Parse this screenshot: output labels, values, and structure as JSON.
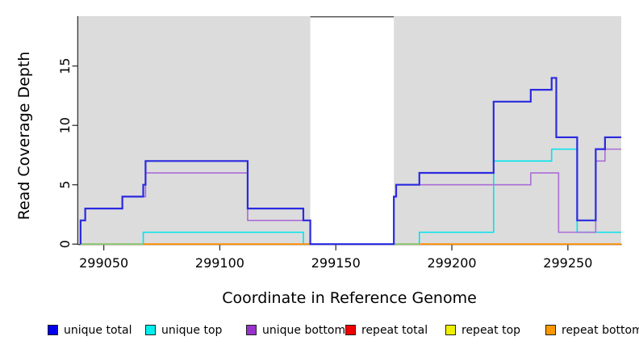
{
  "figure": {
    "xlabel": "Coordinate in Reference Genome",
    "ylabel": "Read Coverage Depth"
  },
  "legend": {
    "items": [
      {
        "label": "unique total",
        "color": "#0000ee"
      },
      {
        "label": "unique top",
        "color": "#00eeee"
      },
      {
        "label": "unique bottom",
        "color": "#9932cc"
      },
      {
        "label": "repeat total",
        "color": "#ee0000"
      },
      {
        "label": "repeat top",
        "color": "#eeee00"
      },
      {
        "label": "repeat bottom",
        "color": "#ff9800"
      }
    ]
  },
  "chart_data": {
    "type": "line",
    "subtype": "step-coverage",
    "title": "",
    "xlabel": "Coordinate in Reference Genome",
    "ylabel": "Read Coverage Depth",
    "xlim": [
      299039,
      299273
    ],
    "ylim": [
      0,
      19.2
    ],
    "xticks": [
      {
        "value": 299050,
        "label": "299050"
      },
      {
        "value": 299100,
        "label": "299100"
      },
      {
        "value": 299150,
        "label": "299150"
      },
      {
        "value": 299200,
        "label": "299200"
      },
      {
        "value": 299250,
        "label": "299250"
      }
    ],
    "yticks": [
      {
        "value": 0,
        "label": "0"
      },
      {
        "value": 5,
        "label": "5"
      },
      {
        "value": 10,
        "label": "10"
      },
      {
        "value": 15,
        "label": "15"
      }
    ],
    "grid": false,
    "legend_position": "bottom",
    "plot_background": "#dcdcdc",
    "axis_color": "#333333",
    "gap_region": {
      "start": 299139,
      "end": 299175,
      "fill": "#ffffff",
      "top_border": "#5a5a5a"
    },
    "series": [
      {
        "name": "repeat total",
        "color": "#ee0000",
        "width": 1.6,
        "hidden": true,
        "value": 0,
        "note_points": [
          [
            299040,
            0
          ]
        ],
        "end": 299273
      },
      {
        "name": "repeat top",
        "color": "#eeee00",
        "width": 1.6,
        "hidden": true,
        "value": 0,
        "note_points": [
          [
            299040,
            0
          ]
        ],
        "end": 299273
      },
      {
        "name": "unique top",
        "color": "#00e4ee",
        "width": 1.6,
        "points": [
          [
            299040,
            0
          ],
          [
            299067,
            1
          ],
          [
            299136,
            0
          ],
          [
            299186,
            1
          ],
          [
            299218,
            7
          ],
          [
            299243,
            8
          ],
          [
            299254,
            1
          ]
        ],
        "end": 299273
      },
      {
        "name": "unique bottom",
        "color": "#ab6cd8",
        "width": 1.6,
        "points": [
          [
            299040,
            2
          ],
          [
            299042,
            3
          ],
          [
            299058,
            4
          ],
          [
            299068,
            6
          ],
          [
            299112,
            2
          ],
          [
            299139,
            0
          ],
          [
            299175,
            4
          ],
          [
            299176,
            5
          ],
          [
            299234,
            6
          ],
          [
            299246,
            1
          ],
          [
            299262,
            7
          ],
          [
            299266,
            8
          ]
        ],
        "end": 299273
      },
      {
        "name": "repeat bottom",
        "color": "#ff8c00",
        "width": 1.8,
        "value": 0,
        "segments": [
          [
            299040,
            299139
          ],
          [
            299175,
            299273
          ]
        ]
      },
      {
        "name": "unique total",
        "color": "#2a2ae0",
        "width": 2.2,
        "points": [
          [
            299040,
            2
          ],
          [
            299042,
            3
          ],
          [
            299058,
            4
          ],
          [
            299067,
            5
          ],
          [
            299068,
            7
          ],
          [
            299112,
            3
          ],
          [
            299136,
            2
          ],
          [
            299139,
            0
          ],
          [
            299175,
            4
          ],
          [
            299176,
            5
          ],
          [
            299186,
            6
          ],
          [
            299218,
            12
          ],
          [
            299234,
            13
          ],
          [
            299243,
            14
          ],
          [
            299245,
            9
          ],
          [
            299254,
            2
          ],
          [
            299262,
            8
          ],
          [
            299266,
            9
          ]
        ],
        "end": 299273
      }
    ],
    "baseline_overlap_blend": {
      "color": "#7bcd7e",
      "value": 0,
      "segments": [
        [
          299040,
          299067
        ],
        [
          299175,
          299186
        ]
      ]
    }
  }
}
